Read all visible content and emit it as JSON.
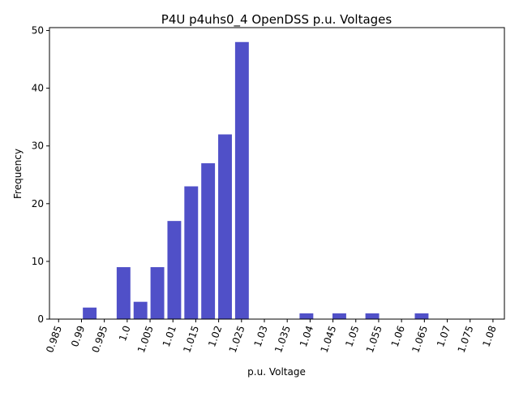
{
  "chart_data": {
    "type": "bar",
    "title": "P4U p4uhs0_4  OpenDSS p.u. Voltages",
    "xlabel": "p.u. Voltage",
    "ylabel": "Frequency",
    "xlim": [
      0.983,
      1.0825
    ],
    "ylim": [
      0,
      50.5
    ],
    "xticks": [
      0.985,
      0.99,
      0.995,
      1.0,
      1.005,
      1.01,
      1.015,
      1.02,
      1.025,
      1.03,
      1.035,
      1.04,
      1.045,
      1.05,
      1.055,
      1.06,
      1.065,
      1.07,
      1.075,
      1.08
    ],
    "xtick_labels": [
      "0.985",
      "0.99",
      "0.995",
      "1.0",
      "1.005",
      "1.01",
      "1.015",
      "1.02",
      "1.025",
      "1.03",
      "1.035",
      "1.04",
      "1.045",
      "1.05",
      "1.055",
      "1.06",
      "1.065",
      "1.07",
      "1.075",
      "1.08"
    ],
    "yticks": [
      0,
      10,
      20,
      30,
      40,
      50
    ],
    "ytick_labels": [
      "0",
      "10",
      "20",
      "30",
      "40",
      "50"
    ],
    "bin_width": 0.003,
    "bar_color": "#5050c8",
    "grid": false,
    "bars": [
      {
        "x": 0.9918,
        "value": 2
      },
      {
        "x": 0.9992,
        "value": 9
      },
      {
        "x": 1.0029,
        "value": 3
      },
      {
        "x": 1.0066,
        "value": 9
      },
      {
        "x": 1.0103,
        "value": 17
      },
      {
        "x": 1.014,
        "value": 23
      },
      {
        "x": 1.0177,
        "value": 27
      },
      {
        "x": 1.0214,
        "value": 32
      },
      {
        "x": 1.0251,
        "value": 48
      },
      {
        "x": 1.0392,
        "value": 1
      },
      {
        "x": 1.0464,
        "value": 1
      },
      {
        "x": 1.0536,
        "value": 1
      },
      {
        "x": 1.0644,
        "value": 1
      }
    ]
  }
}
